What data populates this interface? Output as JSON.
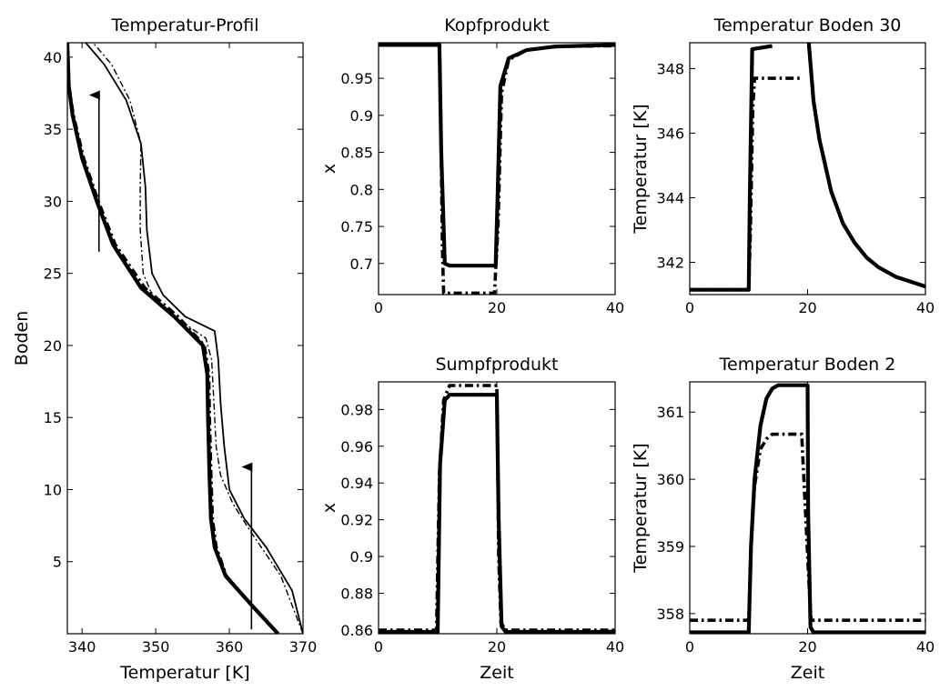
{
  "chart_data": [
    {
      "id": "profil",
      "type": "line",
      "title": "Temperatur-Profil",
      "xlabel": "Temperatur [K]",
      "ylabel": "Boden",
      "xlim": [
        338,
        370
      ],
      "ylim": [
        0,
        41
      ],
      "xticks": [
        340,
        350,
        360,
        370
      ],
      "yticks": [
        5,
        10,
        15,
        20,
        25,
        30,
        35,
        40
      ],
      "grid": false,
      "series": [
        {
          "style": "thick",
          "points": [
            [
              366.6,
              0
            ],
            [
              363,
              2
            ],
            [
              359.5,
              4
            ],
            [
              358,
              6
            ],
            [
              357.5,
              8
            ],
            [
              357.3,
              11
            ],
            [
              357.1,
              15
            ],
            [
              357,
              18
            ],
            [
              356.4,
              20
            ],
            [
              352.5,
              22
            ],
            [
              348,
              24
            ],
            [
              344.2,
              27
            ],
            [
              342,
              30
            ],
            [
              340,
              33
            ],
            [
              338.7,
              36
            ],
            [
              338.2,
              38
            ],
            [
              338,
              41
            ]
          ]
        },
        {
          "style": "thick-dashdot",
          "points": [
            [
              366.6,
              0
            ],
            [
              363,
              2
            ],
            [
              359.6,
              4
            ],
            [
              358.2,
              6
            ],
            [
              357.7,
              8
            ],
            [
              357.5,
              11
            ],
            [
              357.3,
              15
            ],
            [
              357.2,
              18
            ],
            [
              356.6,
              20
            ],
            [
              353,
              22
            ],
            [
              348.5,
              24
            ],
            [
              344.5,
              27
            ],
            [
              342.2,
              30
            ],
            [
              340.2,
              33
            ],
            [
              338.8,
              36
            ],
            [
              338.2,
              38
            ],
            [
              338,
              41
            ]
          ]
        },
        {
          "style": "thin",
          "points": [
            [
              370,
              0
            ],
            [
              368.5,
              3
            ],
            [
              365,
              6
            ],
            [
              362,
              8
            ],
            [
              360,
              10
            ],
            [
              359.3,
              13
            ],
            [
              358.8,
              16
            ],
            [
              358.5,
              19
            ],
            [
              358,
              21
            ],
            [
              354,
              22
            ],
            [
              351,
              23.5
            ],
            [
              349.5,
              25
            ],
            [
              348.8,
              28
            ],
            [
              348.6,
              31
            ],
            [
              348,
              34
            ],
            [
              346,
              37
            ],
            [
              343,
              39.5
            ],
            [
              340.5,
              41
            ]
          ]
        },
        {
          "style": "thin-dashdot",
          "points": [
            [
              370,
              0
            ],
            [
              367,
              4
            ],
            [
              363,
              7
            ],
            [
              360.5,
              9
            ],
            [
              358.8,
              11
            ],
            [
              358.2,
              13
            ],
            [
              357.9,
              16
            ],
            [
              357.6,
              19
            ],
            [
              356.8,
              20.5
            ],
            [
              352.5,
              22
            ],
            [
              349.5,
              23.5
            ],
            [
              348.3,
              25
            ],
            [
              347.9,
              28
            ],
            [
              347.9,
              31
            ],
            [
              348,
              34
            ],
            [
              346.5,
              37
            ],
            [
              344,
              39.5
            ],
            [
              341.5,
              41
            ]
          ]
        }
      ],
      "arrows": [
        {
          "x": 342.3,
          "from": 26.5,
          "to": 38
        },
        {
          "x": 363,
          "from": 0.3,
          "to": 12.2
        }
      ]
    },
    {
      "id": "kopf",
      "type": "line",
      "title": "Kopfprodukt",
      "xlabel": "",
      "ylabel": "x",
      "xlim": [
        0,
        40
      ],
      "ylim": [
        0.658,
        0.998
      ],
      "xticks": [
        0,
        20,
        40
      ],
      "yticks": [
        0.7,
        0.75,
        0.8,
        0.85,
        0.9,
        0.95
      ],
      "grid": false,
      "series": [
        {
          "style": "thick-dashdot",
          "points": [
            [
              0,
              0.995
            ],
            [
              10.3,
              0.995
            ],
            [
              10.5,
              0.9
            ],
            [
              10.8,
              0.72
            ],
            [
              11,
              0.66
            ],
            [
              19.6,
              0.66
            ],
            [
              20.2,
              0.75
            ],
            [
              20.8,
              0.93
            ],
            [
              22,
              0.975
            ],
            [
              25,
              0.988
            ],
            [
              30,
              0.993
            ],
            [
              40,
              0.994
            ]
          ]
        },
        {
          "style": "thick",
          "points": [
            [
              0,
              0.995
            ],
            [
              10.3,
              0.995
            ],
            [
              10.6,
              0.85
            ],
            [
              11.2,
              0.7
            ],
            [
              12,
              0.697
            ],
            [
              19.8,
              0.697
            ],
            [
              20.1,
              0.78
            ],
            [
              20.6,
              0.94
            ],
            [
              22,
              0.977
            ],
            [
              25,
              0.988
            ],
            [
              30,
              0.993
            ],
            [
              40,
              0.995
            ]
          ]
        }
      ]
    },
    {
      "id": "t30",
      "type": "line",
      "title": "Temperatur Boden 30",
      "xlabel": "",
      "ylabel": "Temperatur [K]",
      "xlim": [
        0,
        40
      ],
      "ylim": [
        341,
        348.8
      ],
      "xticks": [
        0,
        20,
        40
      ],
      "yticks": [
        342,
        344,
        346,
        348
      ],
      "grid": false,
      "series": [
        {
          "style": "thick-dashdot",
          "points": [
            [
              0,
              341.15
            ],
            [
              10,
              341.15
            ],
            [
              10.3,
              343
            ],
            [
              10.7,
              346.8
            ],
            [
              11,
              347.7
            ],
            [
              19,
              347.7
            ]
          ]
        },
        {
          "style": "thick",
          "points": [
            [
              0,
              341.15
            ],
            [
              10,
              341.15
            ],
            [
              10.2,
              344
            ],
            [
              10.6,
              348.6
            ],
            [
              14,
              348.7
            ]
          ]
        },
        {
          "style": "thick",
          "points": [
            [
              20.2,
              348.8
            ],
            [
              21,
              347
            ],
            [
              22,
              345.8
            ],
            [
              24,
              344.2
            ],
            [
              26,
              343.2
            ],
            [
              28,
              342.6
            ],
            [
              30,
              342.15
            ],
            [
              32,
              341.85
            ],
            [
              35,
              341.55
            ],
            [
              40,
              341.25
            ]
          ]
        }
      ]
    },
    {
      "id": "sumpf",
      "type": "line",
      "title": "Sumpfprodukt",
      "xlabel": "Zeit",
      "ylabel": "x",
      "xlim": [
        0,
        40
      ],
      "ylim": [
        0.858,
        0.995
      ],
      "xticks": [
        0,
        20,
        40
      ],
      "yticks": [
        0.86,
        0.88,
        0.9,
        0.92,
        0.94,
        0.96,
        0.98
      ],
      "grid": false,
      "series": [
        {
          "style": "thick-dashdot",
          "points": [
            [
              0,
              0.86
            ],
            [
              9.8,
              0.86
            ],
            [
              10.3,
              0.945
            ],
            [
              11,
              0.985
            ],
            [
              12,
              0.993
            ],
            [
              20,
              0.993
            ],
            [
              20.3,
              0.9
            ],
            [
              20.7,
              0.864
            ],
            [
              21.5,
              0.86
            ],
            [
              40,
              0.86
            ]
          ]
        },
        {
          "style": "thick",
          "points": [
            [
              0,
              0.859
            ],
            [
              10,
              0.859
            ],
            [
              10.4,
              0.95
            ],
            [
              11.2,
              0.985
            ],
            [
              12,
              0.988
            ],
            [
              20,
              0.988
            ],
            [
              20.3,
              0.92
            ],
            [
              20.8,
              0.862
            ],
            [
              21.5,
              0.859
            ],
            [
              40,
              0.859
            ]
          ]
        }
      ]
    },
    {
      "id": "t2",
      "type": "line",
      "title": "Temperatur Boden 2",
      "xlabel": "Zeit",
      "ylabel": "Temperatur [K]",
      "xlim": [
        0,
        40
      ],
      "ylim": [
        357.7,
        361.45
      ],
      "xticks": [
        0,
        20,
        40
      ],
      "yticks": [
        358,
        359,
        360,
        361
      ],
      "grid": false,
      "series": [
        {
          "style": "thick-dashdot",
          "points": [
            [
              0,
              357.9
            ],
            [
              10,
              357.9
            ],
            [
              10.4,
              359
            ],
            [
              11,
              359.9
            ],
            [
              12,
              360.45
            ],
            [
              13,
              360.6
            ],
            [
              14,
              360.67
            ],
            [
              19,
              360.67
            ],
            [
              20.2,
              358.5
            ],
            [
              20.6,
              357.9
            ],
            [
              40,
              357.9
            ]
          ]
        },
        {
          "style": "thick",
          "points": [
            [
              0,
              357.72
            ],
            [
              10,
              357.72
            ],
            [
              10.4,
              359
            ],
            [
              11,
              360
            ],
            [
              12,
              360.8
            ],
            [
              13,
              361.2
            ],
            [
              14,
              361.35
            ],
            [
              15,
              361.4
            ],
            [
              20,
              361.4
            ],
            [
              20.1,
              359.5
            ],
            [
              20.5,
              357.8
            ],
            [
              21,
              357.72
            ],
            [
              40,
              357.72
            ]
          ]
        }
      ]
    }
  ]
}
